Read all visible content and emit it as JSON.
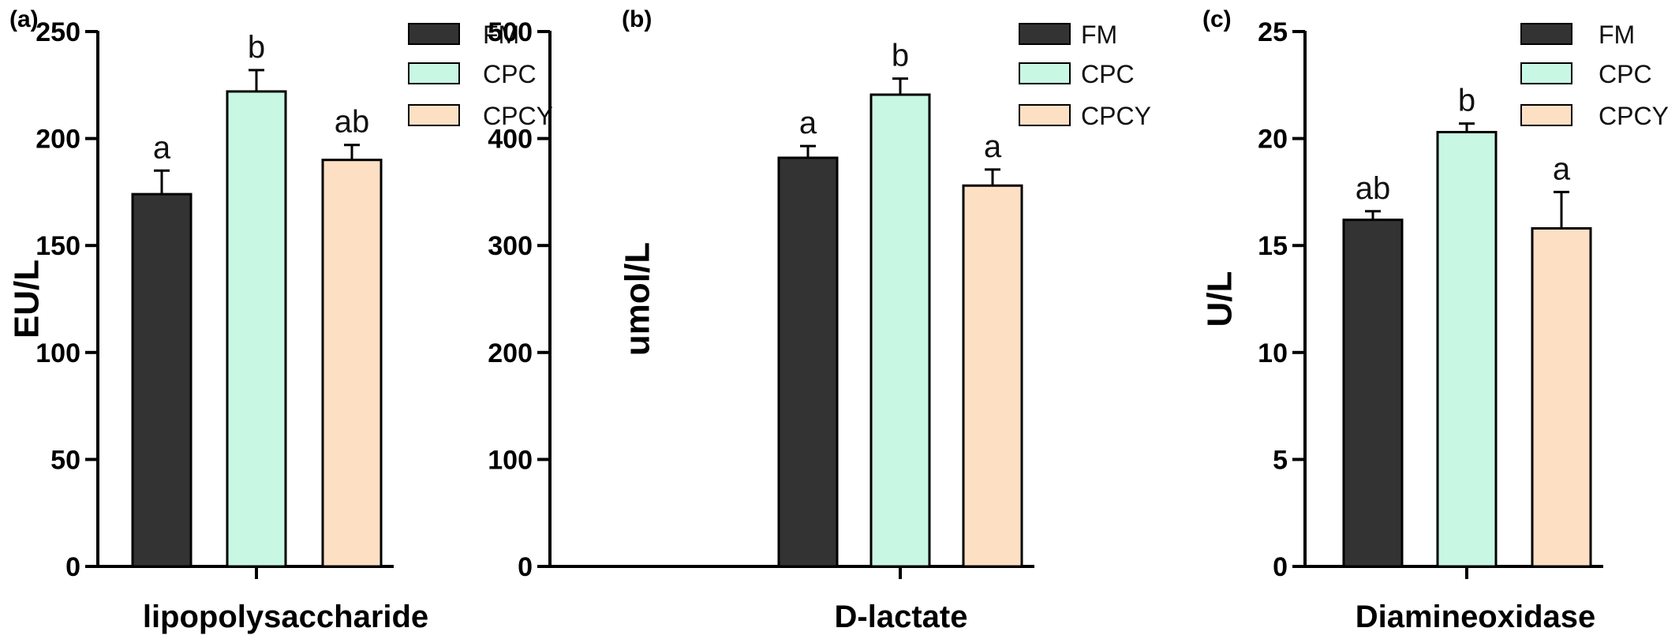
{
  "chart_data": [
    {
      "type": "bar",
      "panel": "(a)",
      "xlabel": "lipopolysaccharide",
      "ylabel": "EU/L",
      "ylim": [
        0,
        250
      ],
      "yticks": [
        0,
        50,
        100,
        150,
        200,
        250
      ],
      "categories": [
        "FM",
        "CPC",
        "CPCY"
      ],
      "values": [
        174,
        222,
        190
      ],
      "errors": [
        11,
        10,
        7
      ],
      "significance": [
        "a",
        "b",
        "ab"
      ],
      "legend": [
        "FM",
        "CPC",
        "CPCY"
      ]
    },
    {
      "type": "bar",
      "panel": "(b)",
      "xlabel": "D-lactate",
      "ylabel": "umol/L",
      "ylim": [
        0,
        500
      ],
      "yticks": [
        0,
        100,
        200,
        300,
        400,
        500
      ],
      "categories": [
        "FM",
        "CPC",
        "CPCY"
      ],
      "values": [
        382,
        441,
        356
      ],
      "errors": [
        11,
        15,
        15
      ],
      "significance": [
        "a",
        "b",
        "a"
      ],
      "legend": [
        "FM",
        "CPC",
        "CPCY"
      ]
    },
    {
      "type": "bar",
      "panel": "(c)",
      "xlabel": "Diamineoxidase",
      "ylabel": "U/L",
      "ylim": [
        0,
        25
      ],
      "yticks": [
        0,
        5,
        10,
        15,
        20,
        25
      ],
      "categories": [
        "FM",
        "CPC",
        "CPCY"
      ],
      "values": [
        16.2,
        20.3,
        15.8
      ],
      "errors": [
        0.4,
        0.4,
        1.7
      ],
      "significance": [
        "ab",
        "b",
        "a"
      ],
      "legend": [
        "FM",
        "CPC",
        "CPCY"
      ]
    }
  ],
  "colors": {
    "FM": "#333333",
    "CPC": "#c8f7e4",
    "CPCY": "#fde0c4"
  }
}
